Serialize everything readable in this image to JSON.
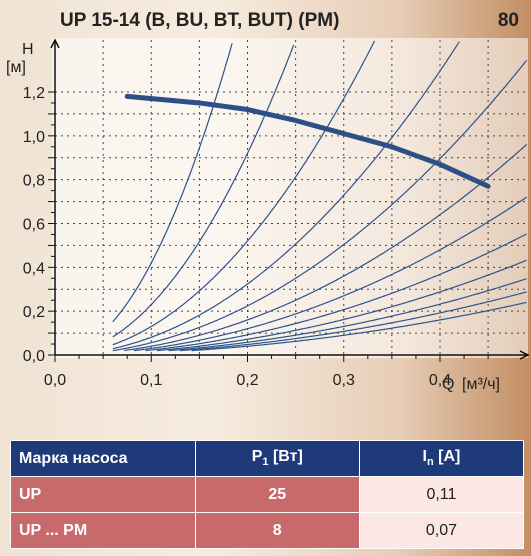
{
  "title": "UP 15-14 (B, BU, BT, BUT) (PM)",
  "page_number": "80",
  "chart_data": {
    "type": "line",
    "ylabel": "H",
    "yunit": "[м]",
    "xlabel": "Q",
    "xunit": "[м³/ч]",
    "xlim": [
      0,
      0.5
    ],
    "ylim": [
      0,
      1.2
    ],
    "x_ticks": [
      "0,0",
      "0,1",
      "0,2",
      "0,3",
      "0,4"
    ],
    "y_ticks": [
      "0,0",
      "0,2",
      "0,4",
      "0,6",
      "0,8",
      "1,0",
      "1,2"
    ],
    "grid": true,
    "series": [
      {
        "x": [
          0.075,
          0.15,
          0.2,
          0.25,
          0.3,
          0.35,
          0.4,
          0.45
        ],
        "y": [
          1.18,
          1.15,
          1.12,
          1.07,
          1.01,
          0.95,
          0.87,
          0.77
        ]
      }
    ],
    "system_curves_k": [
      42,
      23,
      13,
      8.1,
      5.6,
      4.0,
      3.0,
      2.3,
      1.8,
      1.45,
      1.2,
      1.0
    ]
  },
  "table": {
    "headers": [
      "Марка насоса",
      "P",
      "1",
      " [Вт]",
      "I",
      "n",
      " [A]"
    ],
    "rows": [
      [
        "UP",
        "25",
        "0,11"
      ],
      [
        "UP ... PM",
        "8",
        "0,07"
      ]
    ]
  },
  "colors": {
    "curve": "#2c4f86",
    "system_curve": "#2c5489",
    "table_header": "#1f3a78",
    "table_row": "#c86a6c",
    "table_cell": "#fbe7e4"
  }
}
